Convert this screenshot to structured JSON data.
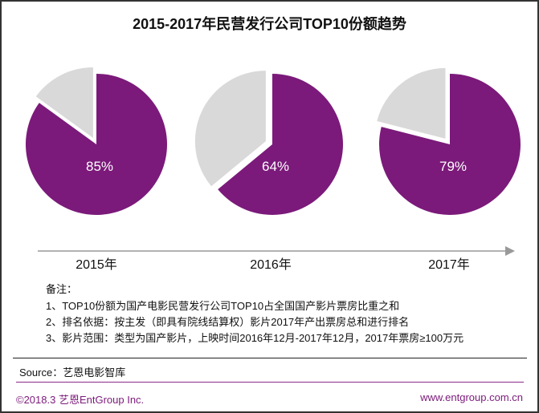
{
  "chart_data": {
    "type": "pie",
    "title": "2015-2017年民营发行公司TOP10份额趋势",
    "categories": [
      "2015年",
      "2016年",
      "2017年"
    ],
    "values": [
      85,
      64,
      79
    ],
    "labels": [
      "85%",
      "64%",
      "79%"
    ],
    "colors": {
      "share": "#7b1a7a",
      "rest": "#d9d9d9"
    }
  },
  "notes": {
    "heading": "备注：",
    "items": [
      "1、TOP10份额为国产电影民营发行公司TOP10占全国国产影片票房比重之和",
      "2、排名依据：按主发（即具有院线结算权）影片2017年产出票房总和进行排名",
      "3、影片范围：类型为国产影片，上映时间2016年12月-2017年12月，2017年票房≥100万元"
    ]
  },
  "source": "Source：艺恩电影智库",
  "footer": {
    "copyright": "©2018.3  艺恩EntGroup Inc.",
    "url": "www.entgroup.com.cn"
  }
}
